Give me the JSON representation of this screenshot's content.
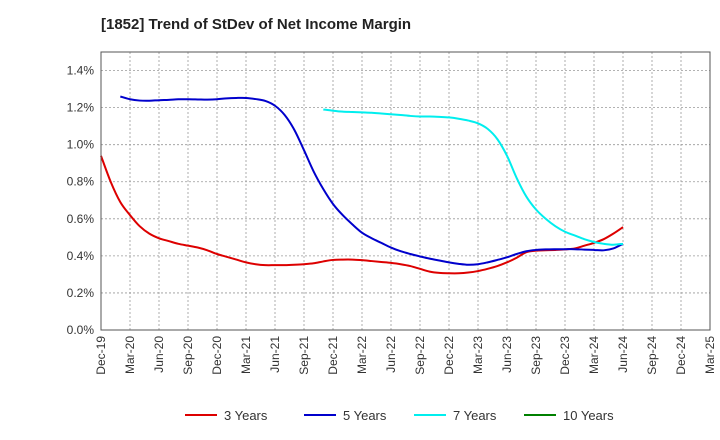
{
  "chart_data": {
    "type": "line",
    "title": "[1852]  Trend of StDev of Net Income Margin",
    "xlabel": "",
    "ylabel": "",
    "x_tick_labels": [
      "Dec-19",
      "Mar-20",
      "Jun-20",
      "Sep-20",
      "Dec-20",
      "Mar-21",
      "Jun-21",
      "Sep-21",
      "Dec-21",
      "Mar-22",
      "Jun-22",
      "Sep-22",
      "Dec-22",
      "Mar-23",
      "Jun-23",
      "Sep-23",
      "Dec-23",
      "Mar-24",
      "Jun-24",
      "Sep-24",
      "Dec-24",
      "Mar-25"
    ],
    "y_tick_labels": [
      "0.0%",
      "0.2%",
      "0.4%",
      "0.6%",
      "0.8%",
      "1.0%",
      "1.2%",
      "1.4%"
    ],
    "ylim": [
      0,
      1.5
    ],
    "grid": true,
    "legend_position": "bottom",
    "series": [
      {
        "name": "3 Years",
        "color": "#dd0000",
        "points": [
          [
            0,
            0.94
          ],
          [
            1,
            0.8
          ],
          [
            2,
            0.69
          ],
          [
            3,
            0.62
          ],
          [
            4,
            0.56
          ],
          [
            5,
            0.52
          ],
          [
            6,
            0.495
          ],
          [
            7,
            0.48
          ],
          [
            8,
            0.465
          ],
          [
            9,
            0.455
          ],
          [
            10,
            0.445
          ],
          [
            11,
            0.43
          ],
          [
            12,
            0.41
          ],
          [
            13,
            0.395
          ],
          [
            14,
            0.38
          ],
          [
            15,
            0.365
          ],
          [
            16,
            0.355
          ],
          [
            17,
            0.35
          ],
          [
            18,
            0.35
          ],
          [
            19,
            0.35
          ],
          [
            20,
            0.352
          ],
          [
            21,
            0.355
          ],
          [
            22,
            0.36
          ],
          [
            23,
            0.37
          ],
          [
            24,
            0.378
          ],
          [
            25,
            0.38
          ],
          [
            26,
            0.38
          ],
          [
            27,
            0.377
          ],
          [
            28,
            0.372
          ],
          [
            29,
            0.367
          ],
          [
            30,
            0.362
          ],
          [
            31,
            0.355
          ],
          [
            32,
            0.345
          ],
          [
            33,
            0.33
          ],
          [
            34,
            0.315
          ],
          [
            35,
            0.308
          ],
          [
            36,
            0.306
          ],
          [
            37,
            0.306
          ],
          [
            38,
            0.31
          ],
          [
            39,
            0.318
          ],
          [
            40,
            0.33
          ],
          [
            41,
            0.345
          ],
          [
            42,
            0.365
          ],
          [
            43,
            0.39
          ],
          [
            44,
            0.42
          ],
          [
            45,
            0.428
          ],
          [
            46,
            0.43
          ],
          [
            47,
            0.432
          ],
          [
            48,
            0.435
          ],
          [
            49,
            0.44
          ],
          [
            50,
            0.455
          ],
          [
            51,
            0.47
          ],
          [
            52,
            0.49
          ],
          [
            53,
            0.52
          ],
          [
            54,
            0.555
          ]
        ]
      },
      {
        "name": "5 Years",
        "color": "#0000cc",
        "points": [
          [
            2,
            1.26
          ],
          [
            3,
            1.245
          ],
          [
            4,
            1.238
          ],
          [
            5,
            1.237
          ],
          [
            6,
            1.24
          ],
          [
            7,
            1.242
          ],
          [
            8,
            1.245
          ],
          [
            9,
            1.245
          ],
          [
            10,
            1.244
          ],
          [
            11,
            1.243
          ],
          [
            12,
            1.245
          ],
          [
            13,
            1.25
          ],
          [
            14,
            1.252
          ],
          [
            15,
            1.252
          ],
          [
            16,
            1.246
          ],
          [
            17,
            1.236
          ],
          [
            18,
            1.21
          ],
          [
            19,
            1.16
          ],
          [
            20,
            1.08
          ],
          [
            21,
            0.97
          ],
          [
            22,
            0.855
          ],
          [
            23,
            0.76
          ],
          [
            24,
            0.68
          ],
          [
            25,
            0.62
          ],
          [
            26,
            0.57
          ],
          [
            27,
            0.525
          ],
          [
            28,
            0.495
          ],
          [
            29,
            0.47
          ],
          [
            30,
            0.445
          ],
          [
            31,
            0.425
          ],
          [
            32,
            0.41
          ],
          [
            33,
            0.397
          ],
          [
            34,
            0.385
          ],
          [
            35,
            0.375
          ],
          [
            36,
            0.365
          ],
          [
            37,
            0.357
          ],
          [
            38,
            0.352
          ],
          [
            39,
            0.355
          ],
          [
            40,
            0.365
          ],
          [
            41,
            0.378
          ],
          [
            42,
            0.392
          ],
          [
            43,
            0.41
          ],
          [
            44,
            0.425
          ],
          [
            45,
            0.432
          ],
          [
            46,
            0.435
          ],
          [
            47,
            0.436
          ],
          [
            48,
            0.436
          ],
          [
            49,
            0.436
          ],
          [
            50,
            0.434
          ],
          [
            51,
            0.432
          ],
          [
            52,
            0.43
          ],
          [
            53,
            0.44
          ],
          [
            54,
            0.465
          ]
        ]
      },
      {
        "name": "7 Years",
        "color": "#00eeee",
        "points": [
          [
            23,
            1.19
          ],
          [
            24,
            1.183
          ],
          [
            25,
            1.178
          ],
          [
            26,
            1.176
          ],
          [
            27,
            1.174
          ],
          [
            28,
            1.172
          ],
          [
            29,
            1.168
          ],
          [
            30,
            1.164
          ],
          [
            31,
            1.16
          ],
          [
            32,
            1.155
          ],
          [
            33,
            1.152
          ],
          [
            34,
            1.152
          ],
          [
            35,
            1.15
          ],
          [
            36,
            1.147
          ],
          [
            37,
            1.14
          ],
          [
            38,
            1.13
          ],
          [
            39,
            1.115
          ],
          [
            40,
            1.085
          ],
          [
            41,
            1.03
          ],
          [
            42,
            0.94
          ],
          [
            43,
            0.82
          ],
          [
            44,
            0.72
          ],
          [
            45,
            0.65
          ],
          [
            46,
            0.6
          ],
          [
            47,
            0.56
          ],
          [
            48,
            0.53
          ],
          [
            49,
            0.51
          ],
          [
            50,
            0.49
          ],
          [
            51,
            0.475
          ],
          [
            52,
            0.465
          ],
          [
            53,
            0.46
          ],
          [
            54,
            0.465
          ]
        ]
      },
      {
        "name": "10 Years",
        "color": "#008000",
        "points": []
      }
    ]
  }
}
